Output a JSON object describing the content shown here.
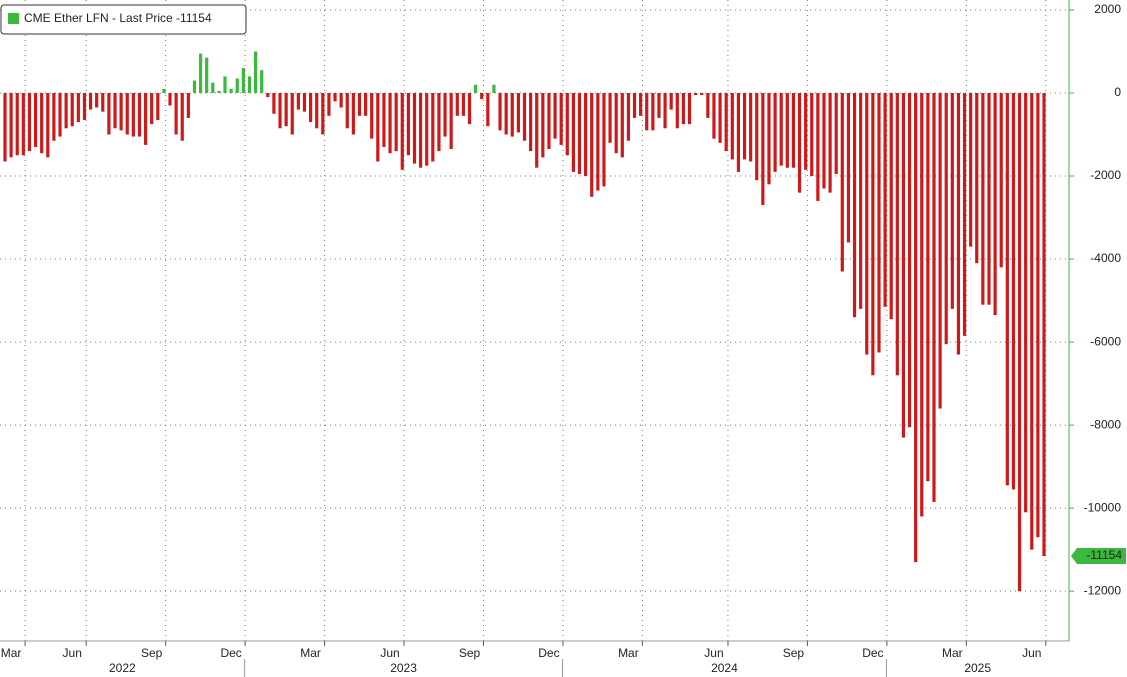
{
  "chart_data": {
    "type": "bar",
    "legend_label": "CME Ether LFN - Last Price -11154",
    "colors": {
      "positive": "#3cb83c",
      "negative": "#cc1a1a"
    },
    "ylim": [
      -13200,
      2240
    ],
    "yticks": [
      2000,
      0,
      -2000,
      -4000,
      -6000,
      -8000,
      -10000,
      -12000
    ],
    "grid": true,
    "years": [
      "2022",
      "2023",
      "2024",
      "2025"
    ],
    "categories": [
      null,
      "Mar",
      null,
      null,
      null,
      null,
      null,
      null,
      null,
      null,
      null,
      "Jun",
      null,
      null,
      null,
      null,
      null,
      null,
      null,
      null,
      null,
      null,
      null,
      null,
      "Sep",
      null,
      null,
      null,
      null,
      null,
      null,
      null,
      null,
      null,
      null,
      null,
      null,
      "Dec",
      null,
      null,
      null,
      null,
      null,
      null,
      null,
      null,
      null,
      null,
      null,
      null,
      "Mar",
      null,
      null,
      null,
      null,
      null,
      null,
      null,
      null,
      null,
      null,
      null,
      null,
      "Jun",
      null,
      null,
      null,
      null,
      null,
      null,
      null,
      null,
      null,
      null,
      null,
      null,
      "Sep",
      null,
      null,
      null,
      null,
      null,
      null,
      null,
      null,
      null,
      null,
      null,
      null,
      "Dec",
      null,
      null,
      null,
      null,
      null,
      null,
      null,
      null,
      null,
      null,
      null,
      null,
      "Mar",
      null,
      null,
      null,
      null,
      null,
      null,
      null,
      null,
      null,
      null,
      null,
      null,
      null,
      "Jun",
      null,
      null,
      null,
      null,
      null,
      null,
      null,
      null,
      null,
      null,
      null,
      null,
      "Sep",
      null,
      null,
      null,
      null,
      null,
      null,
      null,
      null,
      null,
      null,
      null,
      null,
      "Dec",
      null,
      null,
      null,
      null,
      null,
      null,
      null,
      null,
      null,
      null,
      null,
      null,
      "Mar",
      null,
      null,
      null,
      null,
      null,
      null,
      null,
      null,
      null,
      null,
      null,
      null,
      "Jun",
      null,
      null
    ],
    "values": [
      -1650,
      -1550,
      -1500,
      -1500,
      -1400,
      -1300,
      -1450,
      -1550,
      -1150,
      -1050,
      -850,
      -800,
      -700,
      -650,
      -400,
      -350,
      -450,
      -1000,
      -850,
      -900,
      -1000,
      -1050,
      -1050,
      -1250,
      -750,
      -650,
      100,
      -300,
      -1000,
      -1150,
      -600,
      300,
      950,
      850,
      250,
      50,
      400,
      100,
      350,
      600,
      400,
      1000,
      550,
      -100,
      -500,
      -850,
      -800,
      -1000,
      -400,
      -450,
      -700,
      -850,
      -1000,
      -550,
      -200,
      -350,
      -850,
      -1000,
      -550,
      -550,
      -1100,
      -1650,
      -1300,
      -1450,
      -1400,
      -1850,
      -1500,
      -1700,
      -1800,
      -1750,
      -1650,
      -1400,
      -1050,
      -1350,
      -550,
      -550,
      -750,
      200,
      -150,
      -800,
      200,
      -900,
      -1000,
      -1050,
      -950,
      -1150,
      -1400,
      -1800,
      -1550,
      -1350,
      -1100,
      -1250,
      -1500,
      -1900,
      -1950,
      -2000,
      -2500,
      -2350,
      -2250,
      -1200,
      -1450,
      -1550,
      -1150,
      -600,
      -550,
      -900,
      -900,
      -600,
      -850,
      -400,
      -850,
      -750,
      -750,
      -50,
      -50,
      -600,
      -1100,
      -1200,
      -1400,
      -1600,
      -1900,
      -1600,
      -1650,
      -2100,
      -2700,
      -2200,
      -1900,
      -1750,
      -1800,
      -1800,
      -2400,
      -1850,
      -2000,
      -2600,
      -2300,
      -2400,
      -1950,
      -4300,
      -3600,
      -5400,
      -5200,
      -6300,
      -6800,
      -6250,
      -5150,
      -5450,
      -6800,
      -8300,
      -8050,
      -11300,
      -10200,
      -9350,
      -9850,
      -7600,
      -6050,
      -5200,
      -6300,
      -5850,
      -3700,
      -4100,
      -5100,
      -5100,
      -5350,
      -4200,
      -9450,
      -9550,
      -12000,
      -10100,
      -11000,
      -10700,
      -11154
    ]
  }
}
